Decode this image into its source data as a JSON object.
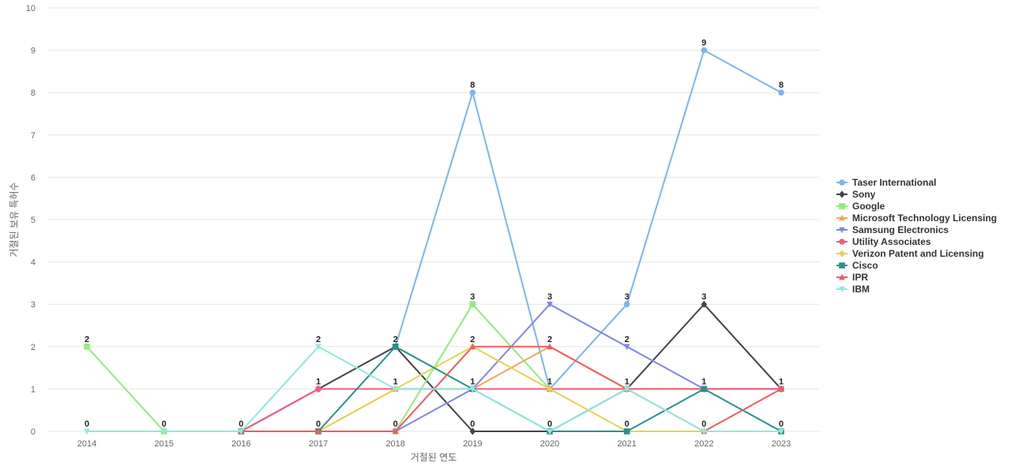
{
  "chart_data": {
    "type": "line",
    "title": "",
    "xlabel": "거절된 연도",
    "ylabel": "거절된 보유 특허수",
    "x": [
      "2014",
      "2015",
      "2016",
      "2017",
      "2018",
      "2019",
      "2020",
      "2021",
      "2022",
      "2023"
    ],
    "ylim": [
      0,
      10
    ],
    "yticks": [
      0,
      1,
      2,
      3,
      4,
      5,
      6,
      7,
      8,
      9,
      10
    ],
    "grid": true,
    "legend_position": "right",
    "series": [
      {
        "name": "Taser International",
        "color": "#7cb5ec",
        "marker": "circle",
        "values": [
          null,
          null,
          null,
          null,
          2,
          8,
          1,
          3,
          9,
          8
        ]
      },
      {
        "name": "Sony",
        "color": "#434348",
        "marker": "diamond",
        "values": [
          null,
          null,
          0,
          1,
          2,
          0,
          0,
          1,
          3,
          1
        ]
      },
      {
        "name": "Google",
        "color": "#90ed7d",
        "marker": "square",
        "values": [
          2,
          0,
          0,
          0,
          0,
          3,
          1,
          1,
          1,
          1
        ]
      },
      {
        "name": "Microsoft Technology Licensing",
        "color": "#f7a35c",
        "marker": "triangle",
        "values": [
          null,
          null,
          0,
          0,
          1,
          1,
          2,
          1,
          1,
          1
        ]
      },
      {
        "name": "Samsung Electronics",
        "color": "#8085e9",
        "marker": "triangle-down",
        "values": [
          null,
          null,
          0,
          0,
          0,
          1,
          3,
          2,
          1,
          1
        ]
      },
      {
        "name": "Utility Associates",
        "color": "#f15c80",
        "marker": "circle",
        "values": [
          null,
          null,
          0,
          1,
          1,
          1,
          1,
          1,
          1,
          1
        ]
      },
      {
        "name": "Verizon Patent and Licensing",
        "color": "#e4d354",
        "marker": "diamond",
        "values": [
          null,
          null,
          0,
          0,
          1,
          2,
          1,
          0,
          0,
          0
        ]
      },
      {
        "name": "Cisco",
        "color": "#2b908f",
        "marker": "square",
        "values": [
          null,
          null,
          0,
          0,
          2,
          1,
          0,
          0,
          1,
          0
        ]
      },
      {
        "name": "IPR",
        "color": "#f45b5b",
        "marker": "triangle",
        "values": [
          null,
          null,
          0,
          0,
          0,
          2,
          2,
          1,
          0,
          1
        ]
      },
      {
        "name": "IBM",
        "color": "#91e8e1",
        "marker": "triangle-down",
        "values": [
          0,
          0,
          0,
          2,
          1,
          1,
          0,
          1,
          0,
          0
        ]
      }
    ],
    "data_labels": [
      {
        "x": "2014",
        "y": 2,
        "text": "2"
      },
      {
        "x": "2014",
        "y": 0,
        "text": "0"
      },
      {
        "x": "2015",
        "y": 0,
        "text": "0"
      },
      {
        "x": "2016",
        "y": 0,
        "text": "0"
      },
      {
        "x": "2017",
        "y": 2,
        "text": "2"
      },
      {
        "x": "2017",
        "y": 1,
        "text": "1"
      },
      {
        "x": "2017",
        "y": 0,
        "text": "0"
      },
      {
        "x": "2018",
        "y": 2,
        "text": "2"
      },
      {
        "x": "2018",
        "y": 1,
        "text": "1"
      },
      {
        "x": "2018",
        "y": 0,
        "text": "0"
      },
      {
        "x": "2019",
        "y": 8,
        "text": "8"
      },
      {
        "x": "2019",
        "y": 3,
        "text": "3"
      },
      {
        "x": "2019",
        "y": 2,
        "text": "2"
      },
      {
        "x": "2019",
        "y": 1,
        "text": "1"
      },
      {
        "x": "2019",
        "y": 0,
        "text": "0"
      },
      {
        "x": "2020",
        "y": 3,
        "text": "3"
      },
      {
        "x": "2020",
        "y": 2,
        "text": "2"
      },
      {
        "x": "2020",
        "y": 1,
        "text": "1"
      },
      {
        "x": "2020",
        "y": 0,
        "text": "0"
      },
      {
        "x": "2021",
        "y": 3,
        "text": "3"
      },
      {
        "x": "2021",
        "y": 2,
        "text": "2"
      },
      {
        "x": "2021",
        "y": 1,
        "text": "1"
      },
      {
        "x": "2021",
        "y": 0,
        "text": "0"
      },
      {
        "x": "2022",
        "y": 9,
        "text": "9"
      },
      {
        "x": "2022",
        "y": 3,
        "text": "3"
      },
      {
        "x": "2022",
        "y": 1,
        "text": "1"
      },
      {
        "x": "2022",
        "y": 0,
        "text": "0"
      },
      {
        "x": "2023",
        "y": 8,
        "text": "8"
      },
      {
        "x": "2023",
        "y": 1,
        "text": "1"
      },
      {
        "x": "2023",
        "y": 0,
        "text": "0"
      }
    ]
  }
}
